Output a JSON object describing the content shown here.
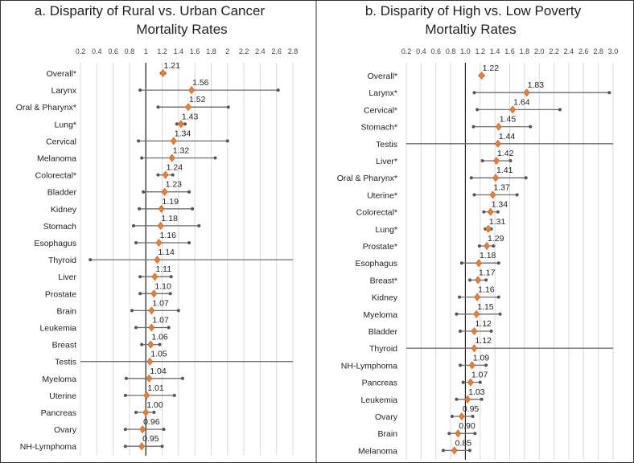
{
  "chart_data": [
    {
      "type": "forest",
      "title_line1": "a.   Disparity of Rural vs. Urban Cancer",
      "title_line2": "Mortality Rates",
      "xlim": [
        0.2,
        2.8
      ],
      "xticks": [
        "0.2",
        "0.4",
        "0.6",
        "0.8",
        "1",
        "1.2",
        "1.4",
        "1.6",
        "1.8",
        "2",
        "2.2",
        "2.4",
        "2.6",
        "2.8"
      ],
      "reference_line": 1,
      "categories": [
        "Overall*",
        "Larynx",
        "Oral & Pharynx*",
        "Lung*",
        "Cervical",
        "Melanoma",
        "Colorectal*",
        "Bladder",
        "Kidney",
        "Stomach",
        "Esophagus",
        "Thyroid",
        "Liver",
        "Prostate",
        "Brain",
        "Leukemia",
        "Breast",
        "Testis",
        "Myeloma",
        "Uterine",
        "Pancreas",
        "Ovary",
        "NH-Lymphoma"
      ],
      "labels": [
        "1.21",
        "1.56",
        "1.52",
        "1.43",
        "1.34",
        "1.32",
        "1.24",
        "1.23",
        "1.19",
        "1.18",
        "1.16",
        "1.14",
        "1.11",
        "1.10",
        "1.07",
        "1.07",
        "1.06",
        "1.05",
        "1.04",
        "1.01",
        "1.00",
        "0.96",
        "0.95"
      ],
      "values": [
        1.21,
        1.56,
        1.52,
        1.43,
        1.34,
        1.32,
        1.24,
        1.23,
        1.19,
        1.18,
        1.16,
        1.14,
        1.11,
        1.1,
        1.07,
        1.07,
        1.06,
        1.05,
        1.04,
        1.01,
        1.0,
        0.96,
        0.95
      ],
      "ci_low": [
        1.19,
        0.93,
        1.15,
        1.38,
        0.91,
        0.95,
        1.15,
        0.97,
        0.92,
        0.85,
        0.88,
        0.32,
        0.93,
        0.93,
        0.83,
        0.88,
        0.95,
        0.2,
        0.76,
        0.75,
        0.88,
        0.75,
        0.75
      ],
      "ci_high": [
        1.23,
        2.62,
        2.01,
        1.48,
        2.0,
        1.85,
        1.33,
        1.53,
        1.57,
        1.65,
        1.53,
        2.8,
        1.31,
        1.3,
        1.4,
        1.28,
        1.17,
        2.8,
        1.45,
        1.35,
        1.1,
        1.22,
        1.2
      ]
    },
    {
      "type": "forest",
      "title_line1": "b.   Disparity of High vs. Low Poverty",
      "title_line2": "Mortaltiy Rates",
      "xlim": [
        0.2,
        3.0
      ],
      "xticks": [
        "0.2",
        "0.4",
        "0.6",
        "0.8",
        "1.0",
        "1.2",
        "1.4",
        "1.6",
        "1.8",
        "2.0",
        "2.2",
        "2.4",
        "2.6",
        "2.8",
        "3.0"
      ],
      "reference_line": 1,
      "categories": [
        "Overall*",
        "Larynx*",
        "Cervical*",
        "Stomach*",
        "Testis",
        "Liver*",
        "Oral & Pharynx*",
        "Uterine*",
        "Colorectal*",
        "Lung*",
        "Prostate*",
        "Esophagus",
        "Breast*",
        "Kidney",
        "Myeloma",
        "Bladder",
        "Thyroid",
        "NH-Lymphoma",
        "Pancreas",
        "Leukemia",
        "Ovary",
        "Brain",
        "Melanoma"
      ],
      "labels": [
        "1.22",
        "1.83",
        "1.64",
        "1.45",
        "1.44",
        "1.42",
        "1.41",
        "1.37",
        "1.34",
        "1.31",
        "1.29",
        "1.18",
        "1.17",
        "1.16",
        "1.15",
        "1.12",
        "1.12",
        "1.09",
        "1.07",
        "1.03",
        "0.95",
        "0.90",
        "0.85"
      ],
      "values": [
        1.22,
        1.83,
        1.64,
        1.45,
        1.44,
        1.42,
        1.41,
        1.37,
        1.34,
        1.31,
        1.29,
        1.18,
        1.17,
        1.16,
        1.15,
        1.12,
        1.12,
        1.09,
        1.07,
        1.03,
        0.95,
        0.9,
        0.85
      ],
      "ci_low": [
        1.2,
        1.12,
        1.16,
        1.11,
        0.2,
        1.23,
        1.08,
        1.12,
        1.25,
        1.27,
        1.19,
        0.95,
        1.06,
        0.92,
        0.88,
        0.93,
        0.2,
        0.93,
        0.97,
        0.88,
        0.82,
        0.78,
        0.7
      ],
      "ci_high": [
        1.24,
        2.95,
        2.28,
        1.88,
        3.0,
        1.61,
        1.82,
        1.7,
        1.44,
        1.35,
        1.38,
        1.45,
        1.28,
        1.45,
        1.47,
        1.35,
        3.0,
        1.28,
        1.2,
        1.22,
        1.1,
        1.13,
        1.06
      ]
    }
  ]
}
